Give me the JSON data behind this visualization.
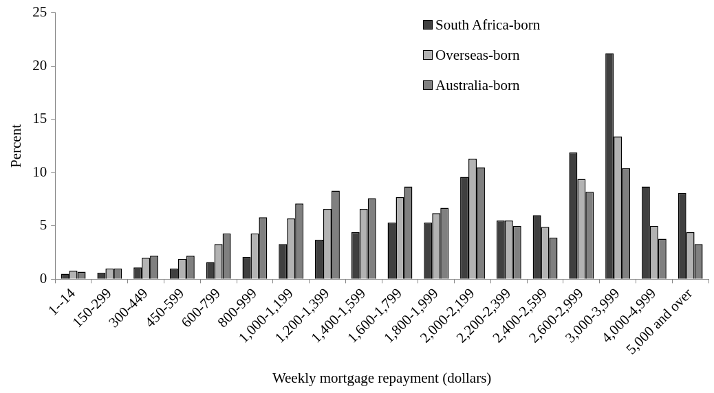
{
  "chart_data": {
    "type": "bar",
    "xlabel": "Weekly mortgage repayment (dollars)",
    "ylabel": "Percent",
    "categories": [
      "1--14",
      "150-299",
      "300-449",
      "450-599",
      "600-799",
      "800-999",
      "1,000-1,199",
      "1,200-1,399",
      "1,400-1,599",
      "1,600-1,799",
      "1,800-1,999",
      "2,000-2,199",
      "2,200-2,399",
      "2,400-2,599",
      "2,600-2,999",
      "3,000-3,999",
      "4,000-4,999",
      "5,000 and over"
    ],
    "series": [
      {
        "name": "South Africa-born",
        "color": "#404040",
        "values": [
          0.5,
          0.6,
          1.1,
          1.0,
          1.6,
          2.1,
          3.3,
          3.7,
          4.4,
          5.3,
          5.3,
          9.6,
          5.5,
          6.0,
          11.9,
          21.2,
          8.7,
          8.1
        ]
      },
      {
        "name": "Overseas-born",
        "color": "#b3b3b3",
        "values": [
          0.8,
          1.0,
          2.0,
          1.9,
          3.3,
          4.3,
          5.7,
          6.6,
          6.6,
          7.7,
          6.2,
          11.3,
          5.5,
          4.9,
          9.4,
          13.4,
          5.0,
          4.4
        ]
      },
      {
        "name": "Australia-born",
        "color": "#808080",
        "values": [
          0.7,
          1.0,
          2.2,
          2.2,
          4.3,
          5.8,
          7.1,
          8.3,
          7.6,
          8.7,
          6.7,
          10.5,
          5.0,
          3.9,
          8.2,
          10.4,
          3.8,
          3.3
        ]
      }
    ],
    "ylim": [
      0,
      25
    ],
    "yticks": [
      0,
      5,
      10,
      15,
      20,
      25
    ],
    "grid": false,
    "legend": "top right"
  }
}
